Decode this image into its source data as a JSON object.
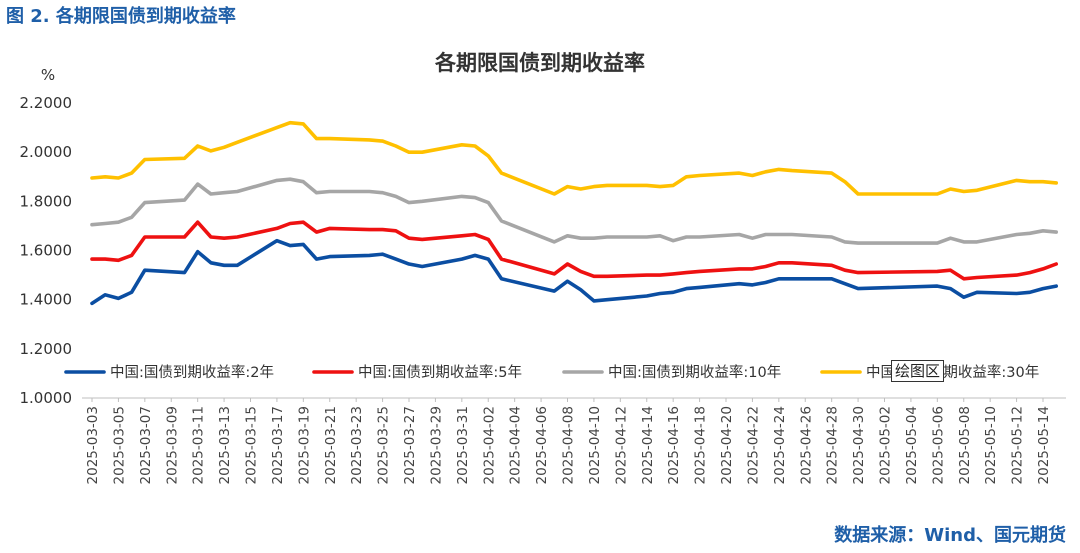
{
  "figure_caption": "图 2. 各期限国债到期收益率",
  "source_text": "数据来源：Wind、国元期货",
  "tooltip_text": "绘图区",
  "colors": {
    "s2": "#0b4ea2",
    "s5": "#ee1111",
    "s10": "#a6a6a6",
    "s30": "#ffc000",
    "caption": "#1f5fa8"
  },
  "chart_data": {
    "type": "line",
    "title": "各期限国债到期收益率",
    "ylabel": "%",
    "xlabel": "",
    "ylim": [
      1.0,
      2.2
    ],
    "yticks": [
      "2.2000",
      "2.0000",
      "1.8000",
      "1.6000",
      "1.4000",
      "1.2000",
      "1.0000"
    ],
    "ytick_values": [
      2.2,
      2.0,
      1.8,
      1.6,
      1.4,
      1.2,
      1.0
    ],
    "grid": false,
    "legend_position": "bottom",
    "x_tick_labels": [
      "2025-03-03",
      "2025-03-05",
      "2025-03-07",
      "2025-03-09",
      "2025-03-11",
      "2025-03-13",
      "2025-03-15",
      "2025-03-17",
      "2025-03-19",
      "2025-03-21",
      "2025-03-23",
      "2025-03-25",
      "2025-03-27",
      "2025-03-29",
      "2025-03-31",
      "2025-04-02",
      "2025-04-04",
      "2025-04-06",
      "2025-04-08",
      "2025-04-10",
      "2025-04-12",
      "2025-04-14",
      "2025-04-16",
      "2025-04-18",
      "2025-04-20",
      "2025-04-22",
      "2025-04-24",
      "2025-04-26",
      "2025-04-28",
      "2025-04-30",
      "2025-05-02",
      "2025-05-04",
      "2025-05-06",
      "2025-05-08",
      "2025-05-10",
      "2025-05-12",
      "2025-05-14"
    ],
    "series": [
      {
        "name": "中国:国债到期收益率:2年",
        "color": "#0b4ea2",
        "points": [
          [
            "2025-03-03",
            1.385
          ],
          [
            "2025-03-04",
            1.42
          ],
          [
            "2025-03-05",
            1.405
          ],
          [
            "2025-03-06",
            1.43
          ],
          [
            "2025-03-07",
            1.52
          ],
          [
            "2025-03-10",
            1.51
          ],
          [
            "2025-03-11",
            1.595
          ],
          [
            "2025-03-12",
            1.55
          ],
          [
            "2025-03-13",
            1.54
          ],
          [
            "2025-03-14",
            1.54
          ],
          [
            "2025-03-17",
            1.64
          ],
          [
            "2025-03-18",
            1.62
          ],
          [
            "2025-03-19",
            1.625
          ],
          [
            "2025-03-20",
            1.565
          ],
          [
            "2025-03-21",
            1.575
          ],
          [
            "2025-03-24",
            1.58
          ],
          [
            "2025-03-25",
            1.585
          ],
          [
            "2025-03-26",
            1.565
          ],
          [
            "2025-03-27",
            1.545
          ],
          [
            "2025-03-28",
            1.535
          ],
          [
            "2025-03-31",
            1.565
          ],
          [
            "2025-04-01",
            1.58
          ],
          [
            "2025-04-02",
            1.565
          ],
          [
            "2025-04-03",
            1.485
          ],
          [
            "2025-04-07",
            1.435
          ],
          [
            "2025-04-08",
            1.475
          ],
          [
            "2025-04-09",
            1.44
          ],
          [
            "2025-04-10",
            1.395
          ],
          [
            "2025-04-11",
            1.4
          ],
          [
            "2025-04-14",
            1.415
          ],
          [
            "2025-04-15",
            1.425
          ],
          [
            "2025-04-16",
            1.43
          ],
          [
            "2025-04-17",
            1.445
          ],
          [
            "2025-04-18",
            1.45
          ],
          [
            "2025-04-21",
            1.465
          ],
          [
            "2025-04-22",
            1.46
          ],
          [
            "2025-04-23",
            1.47
          ],
          [
            "2025-04-24",
            1.485
          ],
          [
            "2025-04-25",
            1.485
          ],
          [
            "2025-04-28",
            1.485
          ],
          [
            "2025-04-29",
            1.465
          ],
          [
            "2025-04-30",
            1.445
          ],
          [
            "2025-05-06",
            1.455
          ],
          [
            "2025-05-07",
            1.445
          ],
          [
            "2025-05-08",
            1.41
          ],
          [
            "2025-05-09",
            1.43
          ],
          [
            "2025-05-12",
            1.425
          ],
          [
            "2025-05-13",
            1.43
          ],
          [
            "2025-05-14",
            1.445
          ],
          [
            "2025-05-15",
            1.455
          ]
        ]
      },
      {
        "name": "中国:国债到期收益率:5年",
        "color": "#ee1111",
        "points": [
          [
            "2025-03-03",
            1.565
          ],
          [
            "2025-03-04",
            1.565
          ],
          [
            "2025-03-05",
            1.56
          ],
          [
            "2025-03-06",
            1.58
          ],
          [
            "2025-03-07",
            1.655
          ],
          [
            "2025-03-10",
            1.655
          ],
          [
            "2025-03-11",
            1.715
          ],
          [
            "2025-03-12",
            1.655
          ],
          [
            "2025-03-13",
            1.65
          ],
          [
            "2025-03-14",
            1.655
          ],
          [
            "2025-03-17",
            1.69
          ],
          [
            "2025-03-18",
            1.71
          ],
          [
            "2025-03-19",
            1.715
          ],
          [
            "2025-03-20",
            1.675
          ],
          [
            "2025-03-21",
            1.69
          ],
          [
            "2025-03-24",
            1.685
          ],
          [
            "2025-03-25",
            1.685
          ],
          [
            "2025-03-26",
            1.68
          ],
          [
            "2025-03-27",
            1.65
          ],
          [
            "2025-03-28",
            1.645
          ],
          [
            "2025-03-31",
            1.66
          ],
          [
            "2025-04-01",
            1.665
          ],
          [
            "2025-04-02",
            1.645
          ],
          [
            "2025-04-03",
            1.565
          ],
          [
            "2025-04-07",
            1.505
          ],
          [
            "2025-04-08",
            1.545
          ],
          [
            "2025-04-09",
            1.515
          ],
          [
            "2025-04-10",
            1.495
          ],
          [
            "2025-04-11",
            1.495
          ],
          [
            "2025-04-14",
            1.5
          ],
          [
            "2025-04-15",
            1.5
          ],
          [
            "2025-04-16",
            1.505
          ],
          [
            "2025-04-17",
            1.51
          ],
          [
            "2025-04-18",
            1.515
          ],
          [
            "2025-04-21",
            1.525
          ],
          [
            "2025-04-22",
            1.525
          ],
          [
            "2025-04-23",
            1.535
          ],
          [
            "2025-04-24",
            1.55
          ],
          [
            "2025-04-25",
            1.55
          ],
          [
            "2025-04-28",
            1.54
          ],
          [
            "2025-04-29",
            1.52
          ],
          [
            "2025-04-30",
            1.51
          ],
          [
            "2025-05-06",
            1.515
          ],
          [
            "2025-05-07",
            1.52
          ],
          [
            "2025-05-08",
            1.485
          ],
          [
            "2025-05-09",
            1.49
          ],
          [
            "2025-05-12",
            1.5
          ],
          [
            "2025-05-13",
            1.51
          ],
          [
            "2025-05-14",
            1.525
          ],
          [
            "2025-05-15",
            1.545
          ]
        ]
      },
      {
        "name": "中国:国债到期收益率:10年",
        "color": "#a6a6a6",
        "points": [
          [
            "2025-03-03",
            1.705
          ],
          [
            "2025-03-04",
            1.71
          ],
          [
            "2025-03-05",
            1.715
          ],
          [
            "2025-03-06",
            1.735
          ],
          [
            "2025-03-07",
            1.795
          ],
          [
            "2025-03-10",
            1.805
          ],
          [
            "2025-03-11",
            1.87
          ],
          [
            "2025-03-12",
            1.83
          ],
          [
            "2025-03-13",
            1.835
          ],
          [
            "2025-03-14",
            1.84
          ],
          [
            "2025-03-17",
            1.885
          ],
          [
            "2025-03-18",
            1.89
          ],
          [
            "2025-03-19",
            1.88
          ],
          [
            "2025-03-20",
            1.835
          ],
          [
            "2025-03-21",
            1.84
          ],
          [
            "2025-03-24",
            1.84
          ],
          [
            "2025-03-25",
            1.835
          ],
          [
            "2025-03-26",
            1.82
          ],
          [
            "2025-03-27",
            1.795
          ],
          [
            "2025-03-28",
            1.8
          ],
          [
            "2025-03-31",
            1.82
          ],
          [
            "2025-04-01",
            1.815
          ],
          [
            "2025-04-02",
            1.795
          ],
          [
            "2025-04-03",
            1.72
          ],
          [
            "2025-04-07",
            1.635
          ],
          [
            "2025-04-08",
            1.66
          ],
          [
            "2025-04-09",
            1.65
          ],
          [
            "2025-04-10",
            1.65
          ],
          [
            "2025-04-11",
            1.655
          ],
          [
            "2025-04-14",
            1.655
          ],
          [
            "2025-04-15",
            1.66
          ],
          [
            "2025-04-16",
            1.64
          ],
          [
            "2025-04-17",
            1.655
          ],
          [
            "2025-04-18",
            1.655
          ],
          [
            "2025-04-21",
            1.665
          ],
          [
            "2025-04-22",
            1.65
          ],
          [
            "2025-04-23",
            1.665
          ],
          [
            "2025-04-24",
            1.665
          ],
          [
            "2025-04-25",
            1.665
          ],
          [
            "2025-04-28",
            1.655
          ],
          [
            "2025-04-29",
            1.635
          ],
          [
            "2025-04-30",
            1.63
          ],
          [
            "2025-05-06",
            1.63
          ],
          [
            "2025-05-07",
            1.65
          ],
          [
            "2025-05-08",
            1.635
          ],
          [
            "2025-05-09",
            1.635
          ],
          [
            "2025-05-12",
            1.665
          ],
          [
            "2025-05-13",
            1.67
          ],
          [
            "2025-05-14",
            1.68
          ],
          [
            "2025-05-15",
            1.675
          ]
        ]
      },
      {
        "name": "中国:国债到期收益率:30年",
        "color": "#ffc000",
        "points": [
          [
            "2025-03-03",
            1.895
          ],
          [
            "2025-03-04",
            1.9
          ],
          [
            "2025-03-05",
            1.895
          ],
          [
            "2025-03-06",
            1.915
          ],
          [
            "2025-03-07",
            1.97
          ],
          [
            "2025-03-10",
            1.975
          ],
          [
            "2025-03-11",
            2.025
          ],
          [
            "2025-03-12",
            2.005
          ],
          [
            "2025-03-13",
            2.02
          ],
          [
            "2025-03-14",
            2.04
          ],
          [
            "2025-03-17",
            2.1
          ],
          [
            "2025-03-18",
            2.12
          ],
          [
            "2025-03-19",
            2.115
          ],
          [
            "2025-03-20",
            2.055
          ],
          [
            "2025-03-21",
            2.055
          ],
          [
            "2025-03-24",
            2.05
          ],
          [
            "2025-03-25",
            2.045
          ],
          [
            "2025-03-26",
            2.025
          ],
          [
            "2025-03-27",
            2.0
          ],
          [
            "2025-03-28",
            2.0
          ],
          [
            "2025-03-31",
            2.03
          ],
          [
            "2025-04-01",
            2.025
          ],
          [
            "2025-04-02",
            1.985
          ],
          [
            "2025-04-03",
            1.915
          ],
          [
            "2025-04-07",
            1.83
          ],
          [
            "2025-04-08",
            1.86
          ],
          [
            "2025-04-09",
            1.85
          ],
          [
            "2025-04-10",
            1.86
          ],
          [
            "2025-04-11",
            1.865
          ],
          [
            "2025-04-14",
            1.865
          ],
          [
            "2025-04-15",
            1.86
          ],
          [
            "2025-04-16",
            1.865
          ],
          [
            "2025-04-17",
            1.9
          ],
          [
            "2025-04-18",
            1.905
          ],
          [
            "2025-04-21",
            1.915
          ],
          [
            "2025-04-22",
            1.905
          ],
          [
            "2025-04-23",
            1.92
          ],
          [
            "2025-04-24",
            1.93
          ],
          [
            "2025-04-25",
            1.925
          ],
          [
            "2025-04-28",
            1.915
          ],
          [
            "2025-04-29",
            1.88
          ],
          [
            "2025-04-30",
            1.83
          ],
          [
            "2025-05-06",
            1.83
          ],
          [
            "2025-05-07",
            1.85
          ],
          [
            "2025-05-08",
            1.84
          ],
          [
            "2025-05-09",
            1.845
          ],
          [
            "2025-05-12",
            1.885
          ],
          [
            "2025-05-13",
            1.88
          ],
          [
            "2025-05-14",
            1.88
          ],
          [
            "2025-05-15",
            1.875
          ]
        ]
      }
    ]
  }
}
